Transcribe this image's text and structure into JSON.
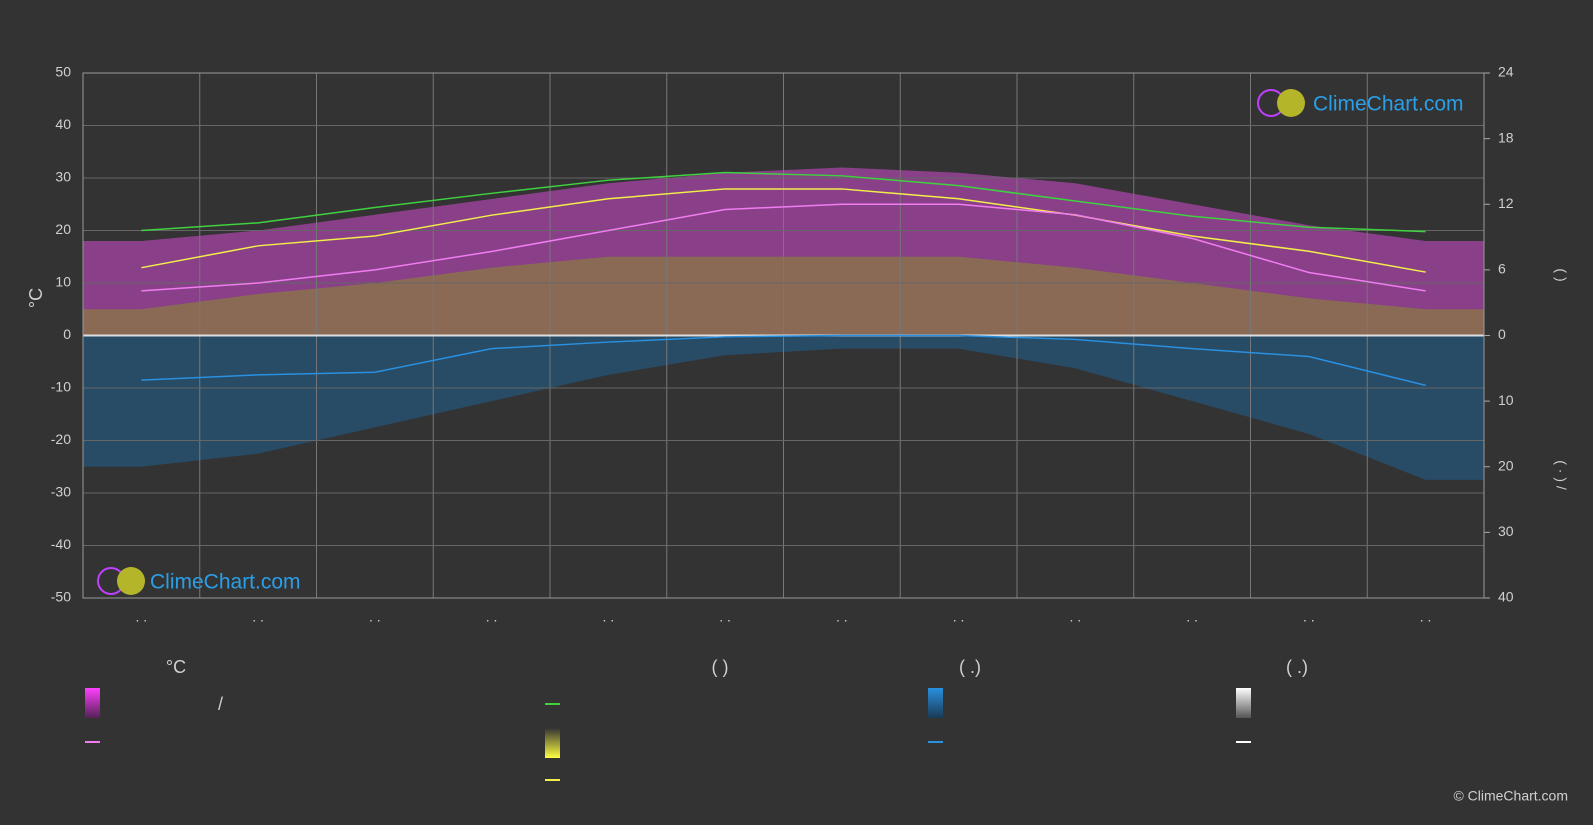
{
  "chart_data": {
    "type": "line",
    "categories": [
      ". .",
      ". .",
      ". .",
      ". .",
      ". .",
      ". .",
      ". .",
      ". .",
      ". .",
      ". .",
      ". .",
      ". ."
    ],
    "ylim": [
      -50,
      50
    ],
    "yticks": [
      -50,
      -40,
      -30,
      -20,
      -10,
      0,
      10,
      20,
      30,
      40,
      50
    ],
    "y_label": "°C",
    "sun_axis": {
      "lim": [
        0,
        24
      ],
      "ticks": [
        0,
        6,
        12,
        18,
        24
      ],
      "label": "(          )"
    },
    "rain_axis": {
      "lim": [
        0,
        40
      ],
      "ticks": [
        10,
        20,
        30,
        40
      ],
      "label": "(  ·  )   /"
    },
    "grid": true,
    "series": [
      {
        "kind": "area",
        "axis": "y",
        "color": "#d04ad0",
        "values": [
          18,
          20,
          23,
          26,
          29,
          31,
          32,
          31,
          29,
          25,
          21,
          18
        ]
      },
      {
        "kind": "area",
        "axis": "sun",
        "color": "#8c8c2a",
        "values": [
          2.4,
          3.8,
          4.8,
          6.2,
          7.2,
          7.2,
          7.2,
          7.2,
          6.2,
          4.8,
          3.4,
          2.4
        ]
      },
      {
        "kind": "area",
        "axis": "rain",
        "color": "#1f5f8f",
        "values": [
          20,
          18,
          14,
          10,
          6,
          3,
          2,
          2,
          5,
          10,
          15,
          22
        ]
      },
      {
        "kind": "line",
        "axis": "sun",
        "color": "#3fd23f",
        "values": [
          9.6,
          10.3,
          11.7,
          13.0,
          14.2,
          14.9,
          14.6,
          13.7,
          12.3,
          10.9,
          9.9,
          9.5
        ]
      },
      {
        "kind": "line",
        "axis": "sun",
        "color": "#f2ee4a",
        "values": [
          6.2,
          8.2,
          9.1,
          11.0,
          12.5,
          13.4,
          13.4,
          12.5,
          11.0,
          9.1,
          7.7,
          5.8
        ]
      },
      {
        "kind": "line",
        "axis": "y",
        "color": "#f07cf0",
        "values": [
          8.5,
          10,
          12.5,
          16,
          20,
          24,
          25,
          25,
          23,
          18.5,
          12,
          8.5
        ]
      },
      {
        "kind": "line",
        "axis": "rain",
        "color": "#2a90e0",
        "values": [
          6.8,
          6.0,
          5.6,
          2.0,
          1.0,
          0.2,
          0,
          0,
          0.6,
          2.0,
          3.2,
          7.6
        ]
      }
    ],
    "legend": {
      "headers": [
        "°C",
        "(          )",
        "(   .)",
        "(   .)"
      ],
      "slash": "/"
    },
    "logo": "ClimeChart.com",
    "copyright": "© ClimeChart.com"
  }
}
